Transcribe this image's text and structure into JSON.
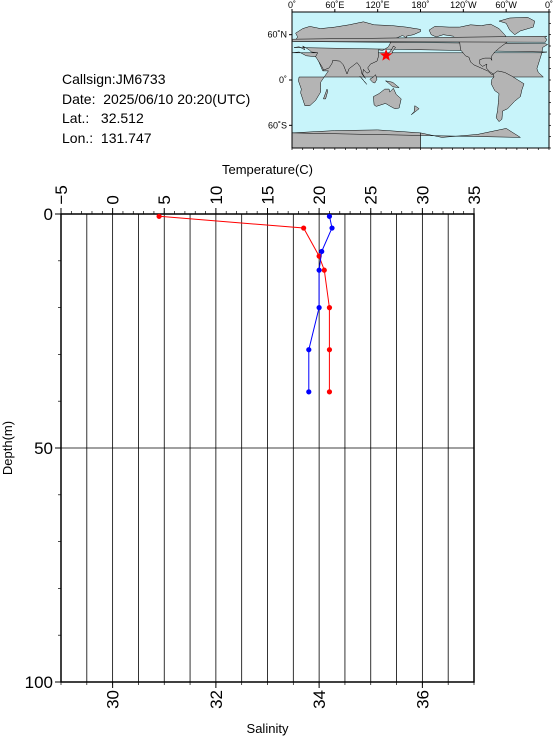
{
  "info": {
    "callsign": "Callsign:JM6733",
    "date": "Date:  2025/06/10 20:20(UTC)",
    "lat": "Lat.:   32.512",
    "lon": "Lon.:  131.747"
  },
  "map": {
    "top_ticks": [
      "0˚",
      "60˚E",
      "120˚E",
      "180˚",
      "120˚W",
      "60˚W",
      "0˚"
    ],
    "left_ticks": [
      "60˚N",
      "0˚",
      "60˚S"
    ],
    "station": {
      "lat": 32.512,
      "lon": 131.747
    },
    "colors": {
      "ocean": "#c8f4fa",
      "land": "#b4b4b4",
      "marker": "#ff0000"
    }
  },
  "chart_data": {
    "type": "line",
    "y_axis": {
      "label": "Depth(m)",
      "range": [
        0,
        100
      ],
      "ticks": [
        "0",
        "50",
        "100"
      ],
      "inverted": true
    },
    "top_axis": {
      "label": "Temperature(C)",
      "range": [
        -5,
        35
      ],
      "ticks": [
        "−5",
        "0",
        "5",
        "10",
        "15",
        "20",
        "25",
        "30",
        "35"
      ]
    },
    "bottom_axis": {
      "label": "Salinity",
      "range": [
        29,
        37
      ],
      "ticks": [
        "30",
        "32",
        "34",
        "36"
      ]
    },
    "grid": true,
    "series": [
      {
        "color": "#ff0000",
        "axis": "temperature",
        "points": [
          [
            4.5,
            0.5
          ],
          [
            18.5,
            3
          ],
          [
            20,
            9
          ],
          [
            20.5,
            12
          ],
          [
            21,
            20
          ],
          [
            21,
            29
          ],
          [
            21,
            38
          ]
        ]
      },
      {
        "color": "#0000ff",
        "axis": "salinity",
        "points": [
          [
            34.2,
            0.5
          ],
          [
            34.25,
            3
          ],
          [
            34.05,
            8
          ],
          [
            34.0,
            12
          ],
          [
            34.0,
            20
          ],
          [
            33.8,
            29
          ],
          [
            33.8,
            38
          ]
        ]
      }
    ]
  }
}
